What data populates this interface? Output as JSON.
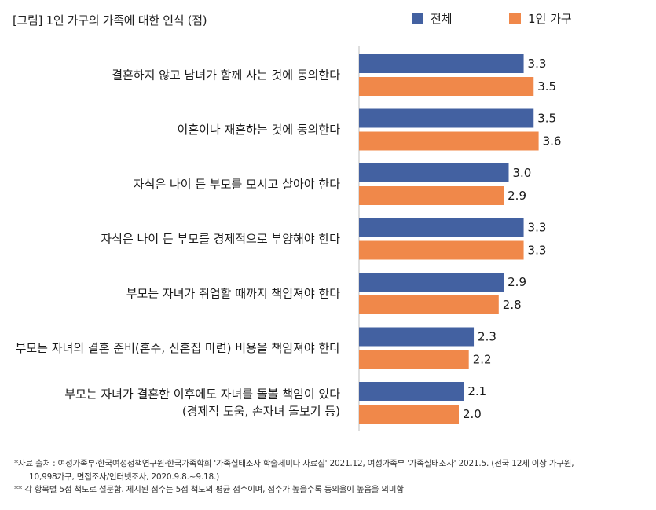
{
  "chart_data": {
    "type": "bar",
    "orientation": "horizontal",
    "title": "[그림] 1인 가구의 가족에 대한 인식 (점)",
    "categories": [
      [
        "결혼하지 않고 남녀가 함께 사는 것에 동의한다"
      ],
      [
        "이혼이나 재혼하는 것에 동의한다"
      ],
      [
        "자식은 나이 든 부모를 모시고 살아야 한다"
      ],
      [
        "자식은 나이 든 부모를 경제적으로 부양해야 한다"
      ],
      [
        "부모는 자녀가 취업할 때까지 책임져야 한다"
      ],
      [
        "부모는 자녀의 결혼 준비(혼수, 신혼집 마련) 비용을 책임져야 한다"
      ],
      [
        "부모는 자녀가 결혼한 이후에도 자녀를 돌볼 책임이 있다",
        "(경제적 도움, 손자녀 돌보기 등)"
      ]
    ],
    "series": [
      {
        "name": "전체",
        "color": "#4361a1",
        "values": [
          3.3,
          3.5,
          3.0,
          3.3,
          2.9,
          2.3,
          2.1
        ],
        "labels": [
          "3.3",
          "3.5",
          "3.0",
          "3.3",
          "2.9",
          "2.3",
          "2.1"
        ]
      },
      {
        "name": "1인 가구",
        "color": "#f0884a",
        "values": [
          3.5,
          3.6,
          2.9,
          3.3,
          2.8,
          2.2,
          2.0
        ],
        "labels": [
          "3.5",
          "3.6",
          "2.9",
          "3.3",
          "2.8",
          "2.2",
          "2.0"
        ]
      }
    ],
    "legend_position": "top-right",
    "grid": false
  },
  "notes": [
    "*자료 출처 : 여성가족부·한국여성정책연구원·한국가족학회 '가족실태조사 학술세미나 자료집' 2021.12, 여성가족부 '가족실태조사' 2021.5. (전국 12세 이상 가구원,",
    "10,998가구, 면접조사/인터넷조사, 2020.9.8.~9.18.)",
    "** 각 항목별 5점 척도로 설문함. 제시된 점수는 5점 척도의 평균 점수이며, 점수가 높을수록 동의율이 높음을 의미함"
  ]
}
